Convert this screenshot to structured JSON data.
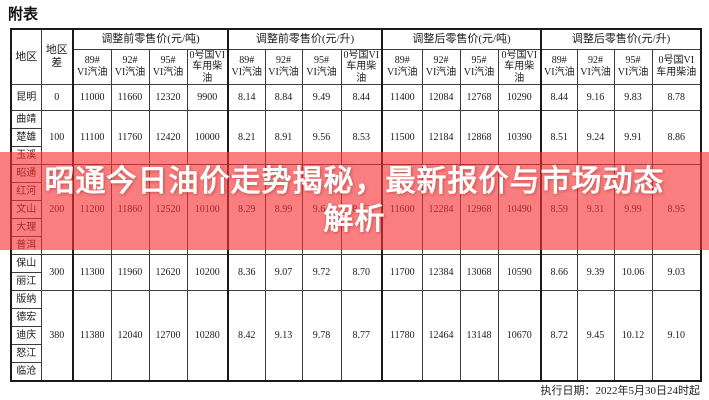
{
  "title": "附表",
  "banner": {
    "line1": "昭通今日油价走势揭秘，最新报价与市场动态",
    "line2": "解析",
    "full_text": "昭通今日油价走势揭秘，最新报价与市场动态解析",
    "overlay_color": "rgba(247,50,52,0.63)",
    "text_color": "#FFFFFF"
  },
  "table": {
    "corner_headers": [
      "地区",
      "地区差"
    ],
    "group_headers": [
      "调整前零售价(元/吨)",
      "调整前零售价(元/升)",
      "调整后零售价(元/吨)",
      "调整后零售价(元/升)"
    ],
    "sub_headers": [
      "89#\nVI汽油",
      "92#\nVI汽油",
      "95#\nVI汽油",
      "0号国VI\n车用柴油"
    ],
    "groups": [
      {
        "regions": [
          "昆明"
        ],
        "diff": "0",
        "values": [
          "11000",
          "11660",
          "12320",
          "9900",
          "8.14",
          "8.84",
          "9.49",
          "8.44",
          "11400",
          "12084",
          "12768",
          "10290",
          "8.44",
          "9.16",
          "9.83",
          "8.78"
        ]
      },
      {
        "regions": [
          "曲靖",
          "楚雄",
          "玉溪"
        ],
        "diff": "100",
        "values": [
          "11100",
          "11760",
          "12420",
          "10000",
          "8.21",
          "8.91",
          "9.56",
          "8.53",
          "11500",
          "12184",
          "12868",
          "10390",
          "8.51",
          "9.24",
          "9.91",
          "8.86"
        ]
      },
      {
        "regions": [
          "昭通",
          "红河",
          "文山",
          "大理",
          "普洱"
        ],
        "diff": "200",
        "values": [
          "11200",
          "11860",
          "12520",
          "10100",
          "8.29",
          "8.99",
          "9.64",
          "8.62",
          "11600",
          "12284",
          "12968",
          "10490",
          "8.59",
          "9.31",
          "9.99",
          "8.95"
        ]
      },
      {
        "regions": [
          "保山",
          "丽江"
        ],
        "diff": "300",
        "values": [
          "11300",
          "11960",
          "12620",
          "10200",
          "8.36",
          "9.07",
          "9.72",
          "8.70",
          "11700",
          "12384",
          "13068",
          "10590",
          "8.66",
          "9.39",
          "10.06",
          "9.03"
        ]
      },
      {
        "regions": [
          "版纳",
          "德宏",
          "迪庆",
          "怒江",
          "临沧"
        ],
        "diff": "380",
        "values": [
          "11380",
          "12040",
          "12700",
          "10280",
          "8.42",
          "9.13",
          "9.78",
          "8.77",
          "11780",
          "12464",
          "13148",
          "10670",
          "8.72",
          "9.45",
          "10.12",
          "9.10"
        ]
      }
    ]
  },
  "footer": {
    "effective_date": "执行日期：2022年5月30日24时起"
  }
}
